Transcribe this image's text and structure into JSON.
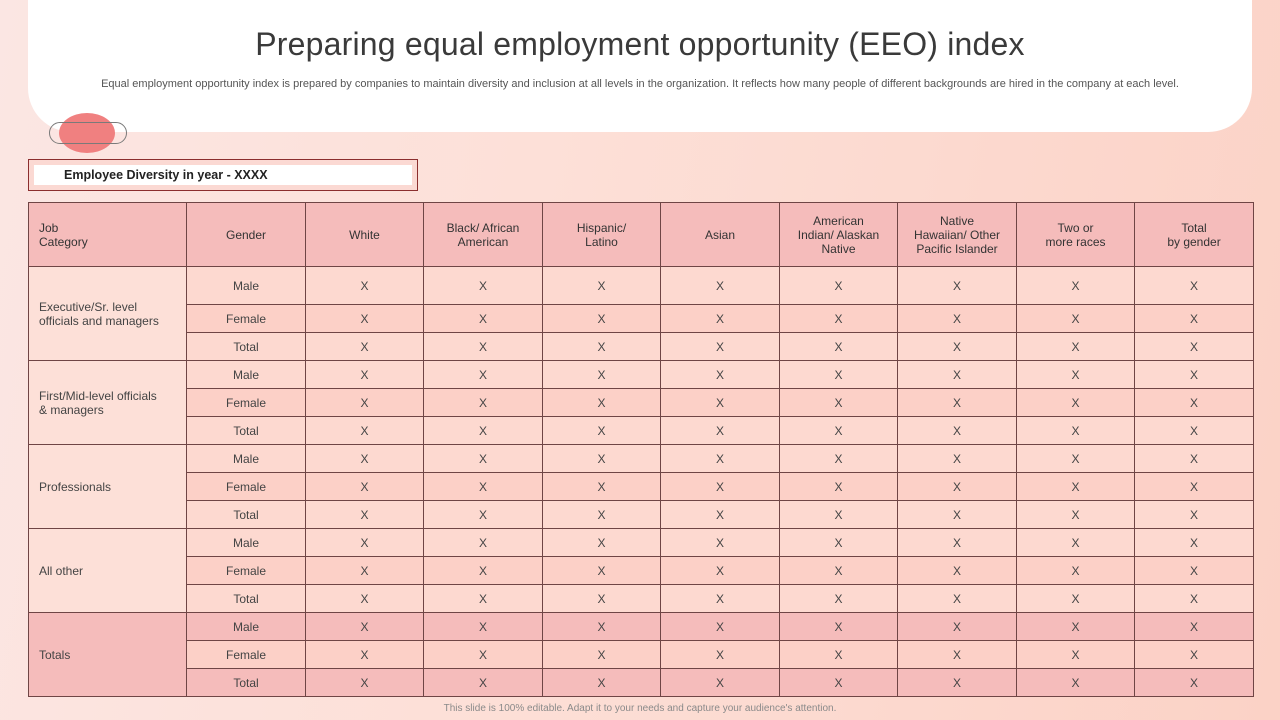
{
  "title": "Preparing equal employment opportunity (EEO) index",
  "subtitle": "Equal employment opportunity index is prepared by companies to maintain diversity and inclusion at all levels in the organization. It reflects how many people of different backgrounds are hired in the company at each level.",
  "section_label": "Employee Diversity in year - XXXX",
  "table": {
    "headers": [
      [
        "Job",
        "Category"
      ],
      [
        "Gender"
      ],
      [
        "White"
      ],
      [
        "Black/ African",
        "American"
      ],
      [
        "Hispanic/",
        "Latino"
      ],
      [
        "Asian"
      ],
      [
        "American",
        "Indian/ Alaskan",
        "Native"
      ],
      [
        "Native",
        "Hawaiian/ Other",
        "Pacific Islander"
      ],
      [
        "Two  or",
        "more races"
      ],
      [
        "Total",
        "by gender"
      ]
    ],
    "groups": [
      {
        "category": [
          "Executive/Sr.  level",
          "officials  and  managers"
        ],
        "rows": [
          {
            "gender": "Male",
            "values": [
              "X",
              "X",
              "X",
              "X",
              "X",
              "X",
              "X",
              "X"
            ]
          },
          {
            "gender": "Female",
            "values": [
              "X",
              "X",
              "X",
              "X",
              "X",
              "X",
              "X",
              "X"
            ]
          },
          {
            "gender": "Total",
            "values": [
              "X",
              "X",
              "X",
              "X",
              "X",
              "X",
              "X",
              "X"
            ]
          }
        ]
      },
      {
        "category": [
          "First/Mid-level  officials",
          "& managers"
        ],
        "rows": [
          {
            "gender": "Male",
            "values": [
              "X",
              "X",
              "X",
              "X",
              "X",
              "X",
              "X",
              "X"
            ]
          },
          {
            "gender": "Female",
            "values": [
              "X",
              "X",
              "X",
              "X",
              "X",
              "X",
              "X",
              "X"
            ]
          },
          {
            "gender": "Total",
            "values": [
              "X",
              "X",
              "X",
              "X",
              "X",
              "X",
              "X",
              "X"
            ]
          }
        ]
      },
      {
        "category": [
          "Professionals"
        ],
        "rows": [
          {
            "gender": "Male",
            "values": [
              "X",
              "X",
              "X",
              "X",
              "X",
              "X",
              "X",
              "X"
            ]
          },
          {
            "gender": "Female",
            "values": [
              "X",
              "X",
              "X",
              "X",
              "X",
              "X",
              "X",
              "X"
            ]
          },
          {
            "gender": "Total",
            "values": [
              "X",
              "X",
              "X",
              "X",
              "X",
              "X",
              "X",
              "X"
            ]
          }
        ]
      },
      {
        "category": [
          "All other"
        ],
        "rows": [
          {
            "gender": "Male",
            "values": [
              "X",
              "X",
              "X",
              "X",
              "X",
              "X",
              "X",
              "X"
            ]
          },
          {
            "gender": "Female",
            "values": [
              "X",
              "X",
              "X",
              "X",
              "X",
              "X",
              "X",
              "X"
            ]
          },
          {
            "gender": "Total",
            "values": [
              "X",
              "X",
              "X",
              "X",
              "X",
              "X",
              "X",
              "X"
            ]
          }
        ]
      },
      {
        "category": [
          "Totals"
        ],
        "rows": [
          {
            "gender": "Male",
            "values": [
              "X",
              "X",
              "X",
              "X",
              "X",
              "X",
              "X",
              "X"
            ]
          },
          {
            "gender": "Female",
            "values": [
              "X",
              "X",
              "X",
              "X",
              "X",
              "X",
              "X",
              "X"
            ]
          },
          {
            "gender": "Total",
            "values": [
              "X",
              "X",
              "X",
              "X",
              "X",
              "X",
              "X",
              "X"
            ]
          }
        ]
      }
    ]
  },
  "footer": "This slide is 100% editable.  Adapt it to your needs and capture your audience's attention.",
  "colors": {
    "accent": "#f08080",
    "header_fill": "#f5bcbb",
    "border": "#6f4545"
  }
}
